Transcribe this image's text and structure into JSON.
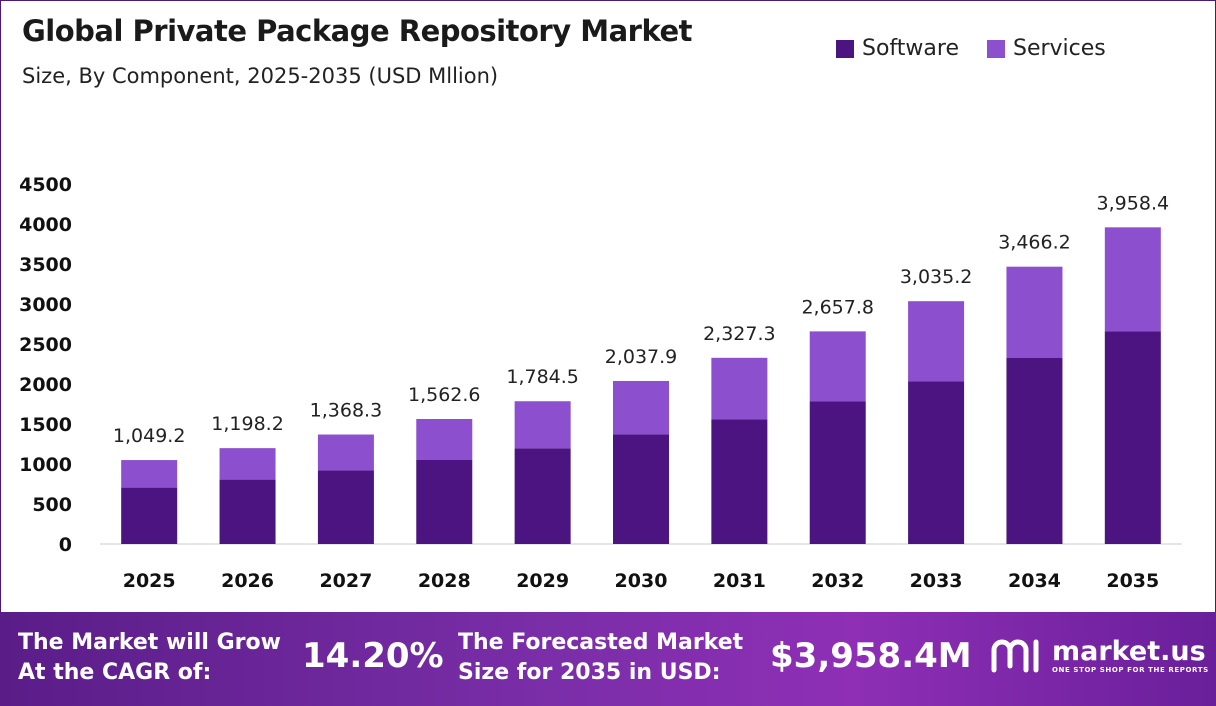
{
  "header": {
    "title": "Global Private Package Repository Market",
    "subtitle": "Size, By Component, 2025-2035 (USD Mllion)"
  },
  "colors": {
    "software": "#4b1480",
    "services": "#8c4fce",
    "axis": "#cccccc"
  },
  "chart_data": {
    "type": "bar",
    "stacked": true,
    "categories": [
      "2025",
      "2026",
      "2027",
      "2028",
      "2029",
      "2030",
      "2031",
      "2032",
      "2033",
      "2034",
      "2035"
    ],
    "series": [
      {
        "name": "Software",
        "values": [
          705,
          805,
          920,
          1050,
          1195,
          1370,
          1560,
          1785,
          2035,
          2325,
          2660
        ]
      },
      {
        "name": "Services",
        "values": [
          344.2,
          393.2,
          448.3,
          512.6,
          589.5,
          667.9,
          767.3,
          872.8,
          1000.2,
          1141.2,
          1298.4
        ]
      }
    ],
    "totals": [
      1049.2,
      1198.2,
      1368.3,
      1562.6,
      1784.5,
      2037.9,
      2327.3,
      2657.8,
      3035.2,
      3466.2,
      3958.4
    ],
    "total_labels": [
      "1,049.2",
      "1,198.2",
      "1,368.3",
      "1,562.6",
      "1,784.5",
      "2,037.9",
      "2,327.3",
      "2,657.8",
      "3,035.2",
      "3,466.2",
      "3,958.4"
    ],
    "y_ticks": [
      0,
      500,
      1000,
      1500,
      2000,
      2500,
      3000,
      3500,
      4000,
      4500
    ],
    "ylim": [
      0,
      4500
    ],
    "legend_position": "top-right",
    "grid": false
  },
  "footer": {
    "cagr_label_line1": "The Market will Grow",
    "cagr_label_line2": "At the CAGR of:",
    "cagr_value": "14.20%",
    "forecast_label_line1": "The Forecasted Market",
    "forecast_label_line2": "Size for 2035 in USD:",
    "forecast_value": "$3,958.4M",
    "logo_name": "market.us",
    "logo_tagline": "ONE STOP SHOP FOR THE REPORTS"
  }
}
